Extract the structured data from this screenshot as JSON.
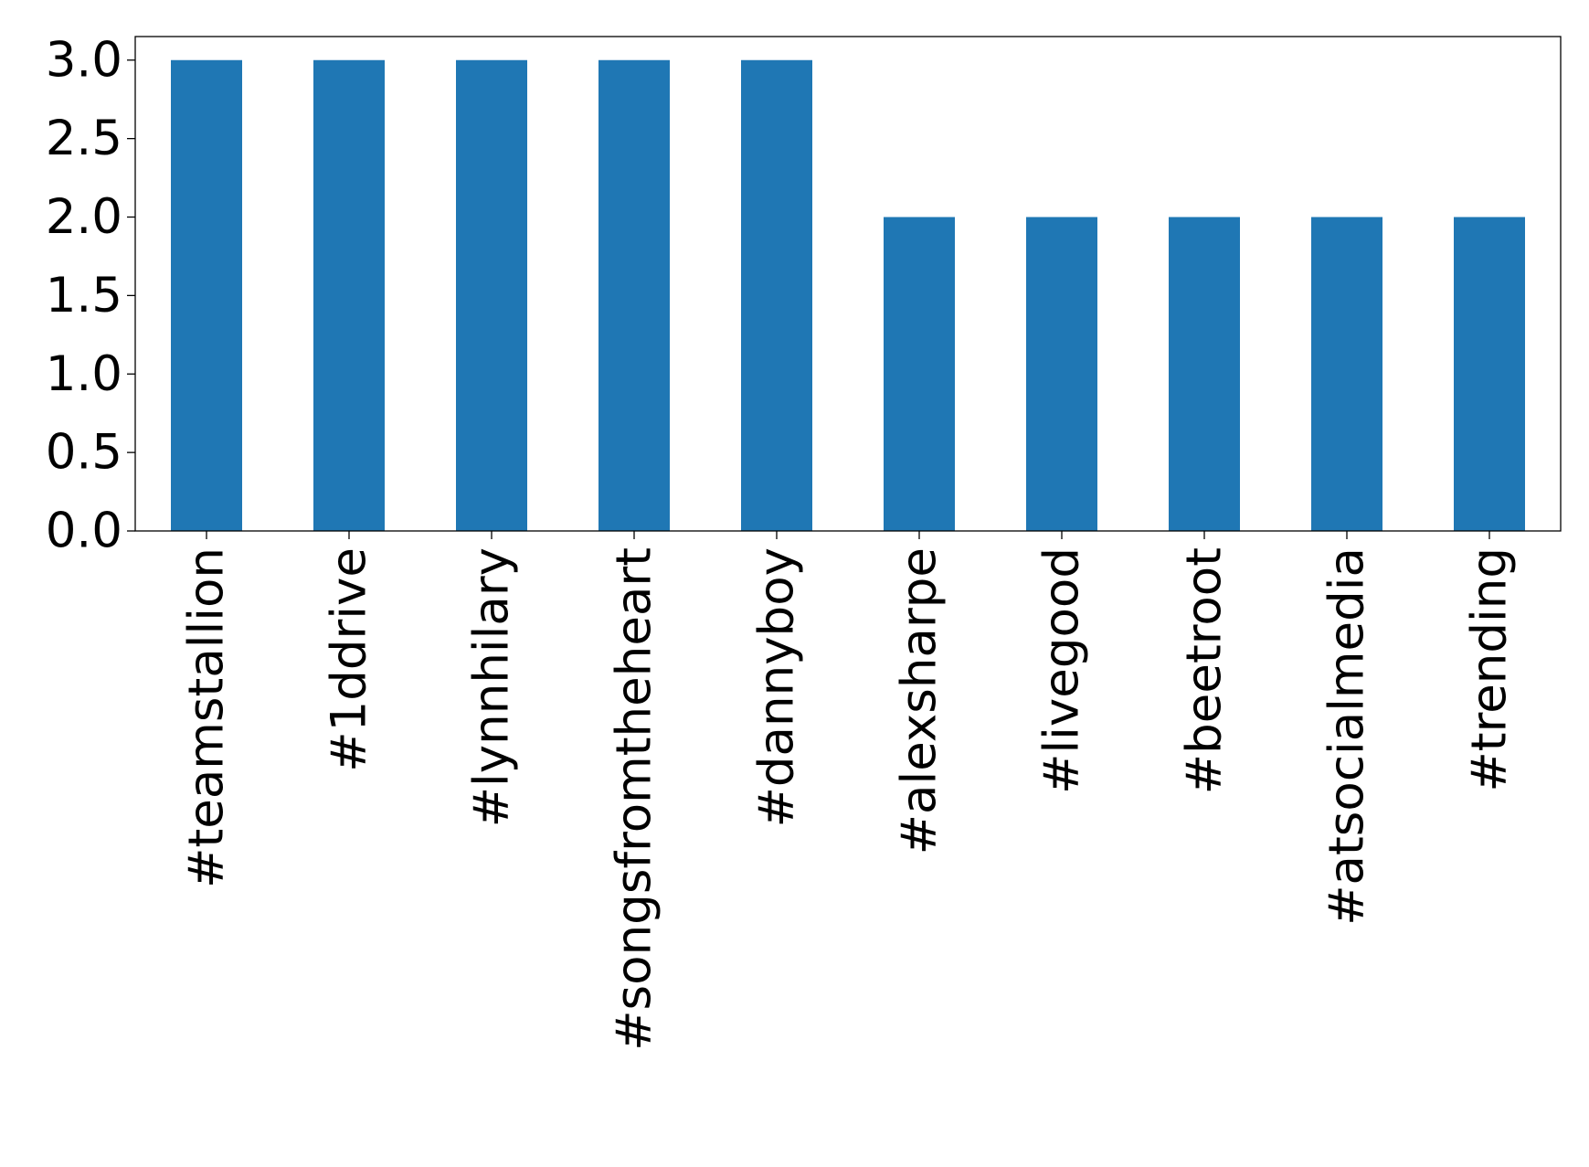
{
  "chart_data": {
    "type": "bar",
    "categories": [
      "#teamstallion",
      "#1ddrive",
      "#lynnhilary",
      "#songsfromtheheart",
      "#dannyboy",
      "#alexsharpe",
      "#livegood",
      "#beetroot",
      "#atsocialmedia",
      "#trending"
    ],
    "values": [
      3,
      3,
      3,
      3,
      3,
      2,
      2,
      2,
      2,
      2
    ],
    "color": "#1f77b4",
    "ylim": [
      0,
      3.15
    ],
    "yticks": [
      {
        "value": 0,
        "label": "0.0"
      },
      0.5,
      {
        "value": 1,
        "label": "1.0"
      },
      1.5,
      {
        "value": 2,
        "label": "2.0"
      },
      2.5,
      {
        "value": 3,
        "label": "3.0"
      }
    ],
    "grid": false
  }
}
